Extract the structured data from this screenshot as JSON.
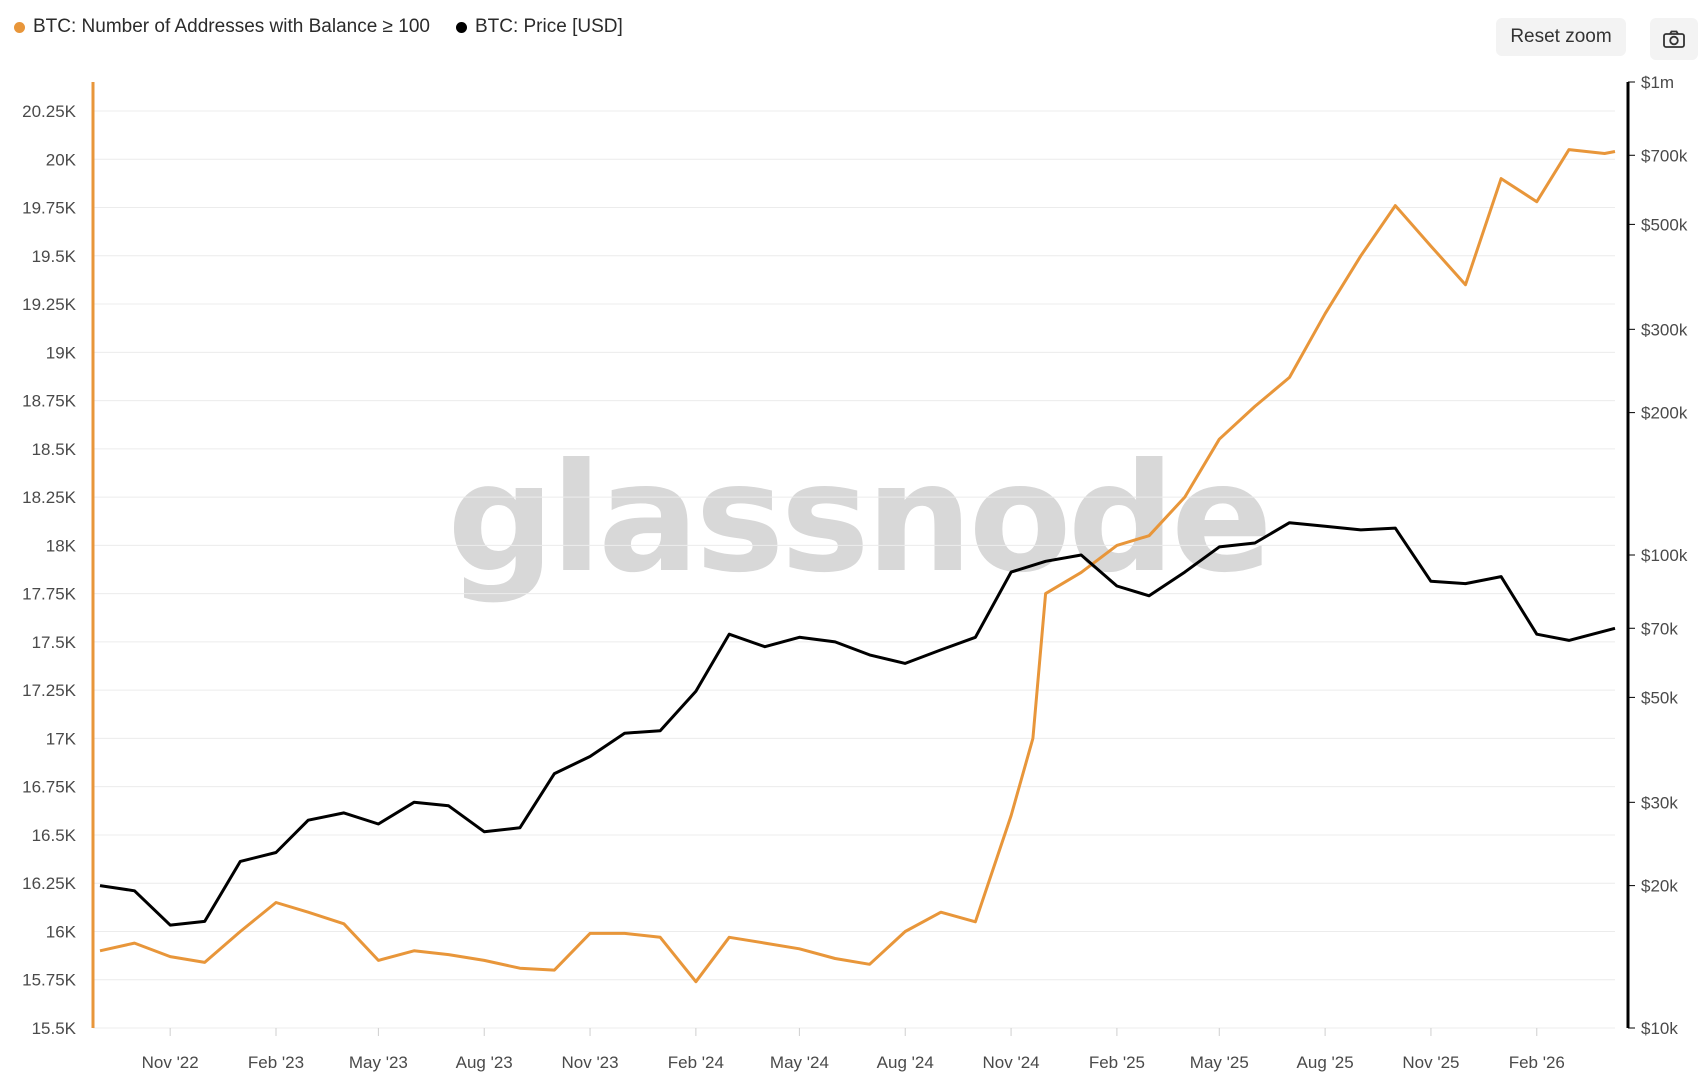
{
  "toolbar": {
    "reset_zoom_label": "Reset zoom",
    "camera_icon": "camera-icon"
  },
  "watermark": "glassnode",
  "chart_data": {
    "type": "line",
    "title": "",
    "legend_position": "top-left",
    "grid": true,
    "colors": {
      "addresses": "#E8963A",
      "price": "#000000",
      "grid": "#ececec"
    },
    "x_ticks": [
      "Nov '22",
      "Feb '23",
      "May '23",
      "Aug '23",
      "Nov '23",
      "Feb '24",
      "May '24",
      "Aug '24",
      "Nov '24",
      "Feb '25",
      "May '25",
      "Aug '25",
      "Nov '25",
      "Feb '26"
    ],
    "x_range": [
      "2022-09-01",
      "2026-04-10"
    ],
    "y_left": {
      "ylim": [
        15500,
        20250
      ],
      "ticks": [
        "15.5K",
        "15.75K",
        "16K",
        "16.25K",
        "16.5K",
        "16.75K",
        "17K",
        "17.25K",
        "17.5K",
        "17.75K",
        "18K",
        "18.25K",
        "18.5K",
        "18.75K",
        "19K",
        "19.25K",
        "19.5K",
        "19.75K",
        "20K",
        "20.25K"
      ]
    },
    "y_right": {
      "scale": "log",
      "ylim": [
        10000,
        1000000
      ],
      "ticks": [
        {
          "value": 10000,
          "label": "$10k"
        },
        {
          "value": 20000,
          "label": "$20k"
        },
        {
          "value": 30000,
          "label": "$30k"
        },
        {
          "value": 50000,
          "label": "$50k"
        },
        {
          "value": 70000,
          "label": "$70k"
        },
        {
          "value": 100000,
          "label": "$100k"
        },
        {
          "value": 200000,
          "label": "$200k"
        },
        {
          "value": 300000,
          "label": "$300k"
        },
        {
          "value": 500000,
          "label": "$500k"
        },
        {
          "value": 700000,
          "label": "$700k"
        },
        {
          "value": 1000000,
          "label": "$1m"
        }
      ]
    },
    "series": [
      {
        "name": "BTC: Number of Addresses with Balance ≥ 100",
        "axis": "left",
        "dates": [
          "2022-09-01",
          "2022-10-01",
          "2022-11-01",
          "2022-12-01",
          "2023-01-01",
          "2023-02-01",
          "2023-03-01",
          "2023-04-01",
          "2023-05-01",
          "2023-06-01",
          "2023-07-01",
          "2023-08-01",
          "2023-09-01",
          "2023-10-01",
          "2023-11-01",
          "2023-12-01",
          "2024-01-01",
          "2024-02-01",
          "2024-03-01",
          "2024-04-01",
          "2024-05-01",
          "2024-06-01",
          "2024-07-01",
          "2024-08-01",
          "2024-09-01",
          "2024-10-01",
          "2024-11-01",
          "2024-11-20",
          "2024-12-01",
          "2025-01-01",
          "2025-02-01",
          "2025-03-01",
          "2025-04-01",
          "2025-05-01",
          "2025-06-01",
          "2025-07-01",
          "2025-08-01",
          "2025-09-01",
          "2025-10-01",
          "2025-11-01",
          "2025-12-01",
          "2026-01-01",
          "2026-02-01",
          "2026-03-01",
          "2026-04-01",
          "2026-04-10"
        ],
        "values": [
          15900,
          15940,
          15870,
          15840,
          16000,
          16150,
          16100,
          16040,
          15850,
          15900,
          15880,
          15850,
          15810,
          15800,
          15990,
          15990,
          15970,
          15740,
          15970,
          15940,
          15910,
          15860,
          15830,
          16000,
          16100,
          16050,
          16600,
          17000,
          17750,
          17860,
          18000,
          18050,
          18250,
          18550,
          18720,
          18870,
          19200,
          19500,
          19760,
          19550,
          19350,
          19900,
          19780,
          20050,
          20030,
          20040
        ]
      },
      {
        "name": "BTC: Price [USD]",
        "axis": "right",
        "dates": [
          "2022-09-01",
          "2022-10-01",
          "2022-11-01",
          "2022-12-01",
          "2023-01-01",
          "2023-02-01",
          "2023-03-01",
          "2023-04-01",
          "2023-05-01",
          "2023-06-01",
          "2023-07-01",
          "2023-08-01",
          "2023-09-01",
          "2023-10-01",
          "2023-11-01",
          "2023-12-01",
          "2024-01-01",
          "2024-02-01",
          "2024-03-01",
          "2024-04-01",
          "2024-05-01",
          "2024-06-01",
          "2024-07-01",
          "2024-08-01",
          "2024-09-01",
          "2024-10-01",
          "2024-11-01",
          "2024-12-01",
          "2025-01-01",
          "2025-02-01",
          "2025-03-01",
          "2025-04-01",
          "2025-05-01",
          "2025-06-01",
          "2025-07-01",
          "2025-08-01",
          "2025-09-01",
          "2025-10-01",
          "2025-11-01",
          "2025-12-01",
          "2026-01-01",
          "2026-02-01",
          "2026-03-01",
          "2026-04-10"
        ],
        "values": [
          20000,
          19500,
          16500,
          16800,
          22500,
          23500,
          27500,
          28500,
          27000,
          30000,
          29500,
          26000,
          26500,
          34500,
          37500,
          42000,
          42500,
          51500,
          68000,
          64000,
          67000,
          65500,
          61500,
          59000,
          63000,
          67000,
          92000,
          97000,
          100000,
          86000,
          82000,
          92000,
          104000,
          106000,
          117000,
          115000,
          113000,
          114000,
          88000,
          87000,
          90000,
          68000,
          66000,
          70000
        ]
      }
    ]
  }
}
